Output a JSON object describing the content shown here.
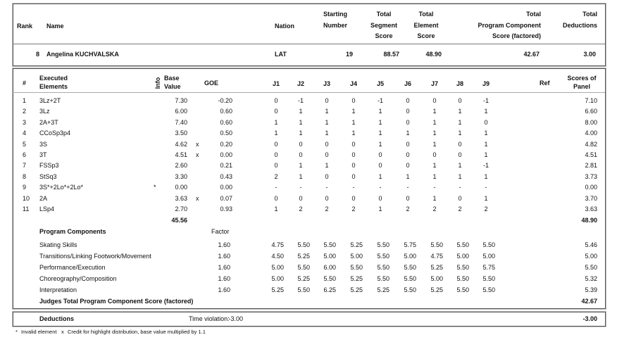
{
  "header": {
    "columns": {
      "rank": "Rank",
      "name": "Name",
      "nation": "Nation",
      "starting_number": [
        "Starting",
        "Number"
      ],
      "total_segment_score": [
        "Total",
        "Segment",
        "Score"
      ],
      "total_element_score": [
        "Total",
        "Element",
        "Score"
      ],
      "total_pcs": [
        "Total",
        "Program  Component",
        "Score (factored)"
      ],
      "total_deductions": [
        "Total",
        "Deductions"
      ]
    },
    "skater": {
      "rank": "8",
      "name": "Angelina KUCHVALSKA",
      "nation": "LAT",
      "starting_number": "19",
      "total_segment_score": "88.57",
      "total_element_score": "48.90",
      "total_pcs": "42.67",
      "total_deductions": "3.00"
    }
  },
  "elements": {
    "columns": {
      "number": "#",
      "executed": [
        "Executed",
        "Elements"
      ],
      "info": "Info",
      "base_value": [
        "Base",
        "Value"
      ],
      "goe": "GOE",
      "judges": [
        "J1",
        "J2",
        "J3",
        "J4",
        "J5",
        "J6",
        "J7",
        "J8",
        "J9"
      ],
      "ref": "Ref",
      "panel": [
        "Scores of",
        "Panel"
      ]
    },
    "rows": [
      {
        "number": "1",
        "element": "3Lz+2T",
        "base_value": "7.30",
        "goe": "-0.20",
        "judges": [
          "0",
          "-1",
          "0",
          "0",
          "-1",
          "0",
          "0",
          "0",
          "-1"
        ],
        "panel": "7.10"
      },
      {
        "number": "2",
        "element": "3Lz",
        "base_value": "6.00",
        "goe": "0.60",
        "judges": [
          "0",
          "1",
          "1",
          "1",
          "1",
          "0",
          "1",
          "1",
          "1"
        ],
        "panel": "6.60"
      },
      {
        "number": "3",
        "element": "2A+3T",
        "base_value": "7.40",
        "goe": "0.60",
        "judges": [
          "1",
          "1",
          "1",
          "1",
          "1",
          "0",
          "1",
          "1",
          "0"
        ],
        "panel": "8.00"
      },
      {
        "number": "4",
        "element": "CCoSp3p4",
        "base_value": "3.50",
        "goe": "0.50",
        "judges": [
          "1",
          "1",
          "1",
          "1",
          "1",
          "1",
          "1",
          "1",
          "1"
        ],
        "panel": "4.00"
      },
      {
        "number": "5",
        "element": "3S",
        "base_value": "4.62",
        "credit": "x",
        "goe": "0.20",
        "judges": [
          "0",
          "0",
          "0",
          "0",
          "1",
          "0",
          "1",
          "0",
          "1"
        ],
        "panel": "4.82"
      },
      {
        "number": "6",
        "element": "3T",
        "base_value": "4.51",
        "credit": "x",
        "goe": "0.00",
        "judges": [
          "0",
          "0",
          "0",
          "0",
          "0",
          "0",
          "0",
          "0",
          "1"
        ],
        "panel": "4.51"
      },
      {
        "number": "7",
        "element": "FSSp3",
        "base_value": "2.60",
        "goe": "0.21",
        "judges": [
          "0",
          "1",
          "1",
          "0",
          "0",
          "0",
          "1",
          "1",
          "-1"
        ],
        "panel": "2.81"
      },
      {
        "number": "8",
        "element": "StSq3",
        "base_value": "3.30",
        "goe": "0.43",
        "judges": [
          "2",
          "1",
          "0",
          "0",
          "1",
          "1",
          "1",
          "1",
          "1"
        ],
        "panel": "3.73"
      },
      {
        "number": "9",
        "element": "3S*+2Lo*+2Lo*",
        "info": "*",
        "base_value": "0.00",
        "goe": "0.00",
        "judges": [
          "-",
          "-",
          "-",
          "-",
          "-",
          "-",
          "-",
          "-",
          "-"
        ],
        "panel": "0.00"
      },
      {
        "number": "10",
        "element": "2A",
        "base_value": "3.63",
        "credit": "x",
        "goe": "0.07",
        "judges": [
          "0",
          "0",
          "0",
          "0",
          "0",
          "0",
          "1",
          "0",
          "1"
        ],
        "panel": "3.70"
      },
      {
        "number": "11",
        "element": "LSp4",
        "base_value": "2.70",
        "goe": "0.93",
        "judges": [
          "1",
          "2",
          "2",
          "2",
          "1",
          "2",
          "2",
          "2",
          "2"
        ],
        "panel": "3.63"
      }
    ],
    "total_base_value": "45.56",
    "total_panel": "48.90"
  },
  "program_components": {
    "title": "Program Components",
    "factor_label": "Factor",
    "rows": [
      {
        "name": "Skating Skills",
        "factor": "1.60",
        "judges": [
          "4.75",
          "5.50",
          "5.50",
          "5.25",
          "5.50",
          "5.75",
          "5.50",
          "5.50",
          "5.50"
        ],
        "panel": "5.46"
      },
      {
        "name": "Transitions/Linking Footwork/Movement",
        "factor": "1.60",
        "judges": [
          "4.50",
          "5.25",
          "5.00",
          "5.00",
          "5.50",
          "5.00",
          "4.75",
          "5.00",
          "5.00"
        ],
        "panel": "5.00"
      },
      {
        "name": "Performance/Execution",
        "factor": "1.60",
        "judges": [
          "5.00",
          "5.50",
          "6.00",
          "5.50",
          "5.50",
          "5.50",
          "5.25",
          "5.50",
          "5.75"
        ],
        "panel": "5.50"
      },
      {
        "name": "Choreography/Composition",
        "factor": "1.60",
        "judges": [
          "5.00",
          "5.25",
          "5.50",
          "5.25",
          "5.50",
          "5.50",
          "5.00",
          "5.50",
          "5.50"
        ],
        "panel": "5.32"
      },
      {
        "name": "Interpretation",
        "factor": "1.60",
        "judges": [
          "5.25",
          "5.50",
          "6.25",
          "5.25",
          "5.25",
          "5.50",
          "5.25",
          "5.50",
          "5.50"
        ],
        "panel": "5.39"
      }
    ],
    "total_label": "Judges Total Program Component Score (factored)",
    "total": "42.67"
  },
  "deductions": {
    "label": "Deductions",
    "item": "Time violation:",
    "item_value": "-3.00",
    "total": "-3.00"
  },
  "footnote": {
    "invalid_symbol": "*",
    "invalid_text": "Invalid element",
    "credit_symbol": "x",
    "credit_text": "Credit for highlight distribution, base value multiplied by 1.1"
  }
}
